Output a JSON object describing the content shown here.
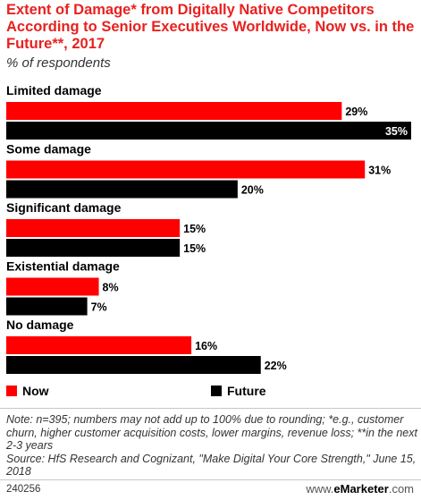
{
  "title": "Extent of Damage* from Digitally Native Competitors According to Senior Executives Worldwide, Now vs. in the Future**, 2017",
  "subtitle": "% of respondents",
  "colors": {
    "now": "#ff0000",
    "future": "#000000",
    "title": "#e8211f"
  },
  "legend": {
    "now": "Now",
    "future": "Future"
  },
  "chart_data": {
    "type": "bar",
    "orientation": "horizontal",
    "title": "Extent of Damage* from Digitally Native Competitors According to Senior Executives Worldwide, Now vs. in the Future**, 2017",
    "subtitle": "% of respondents",
    "categories": [
      "Limited damage",
      "Some damage",
      "Significant damage",
      "Existential damage",
      "No damage"
    ],
    "series": [
      {
        "name": "Now",
        "values": [
          29,
          31,
          15,
          8,
          16
        ]
      },
      {
        "name": "Future",
        "values": [
          35,
          20,
          15,
          7,
          22
        ]
      }
    ],
    "value_suffix": "%",
    "xlim": [
      0,
      35
    ],
    "grid": false,
    "legend_position": "bottom"
  },
  "note": "Note: n=395; numbers may not add up to 100% due to rounding; *e.g., customer churn, higher customer acquisition costs, lower margins, revenue loss; **in the next 2-3 years",
  "source": "Source: HfS Research and Cognizant, \"Make Digital Your Core Strength,\" June 15, 2018",
  "footer": {
    "id": "240256",
    "brand_prefix": "www.",
    "brand_name": "eMarketer",
    "brand_suffix": ".com"
  }
}
